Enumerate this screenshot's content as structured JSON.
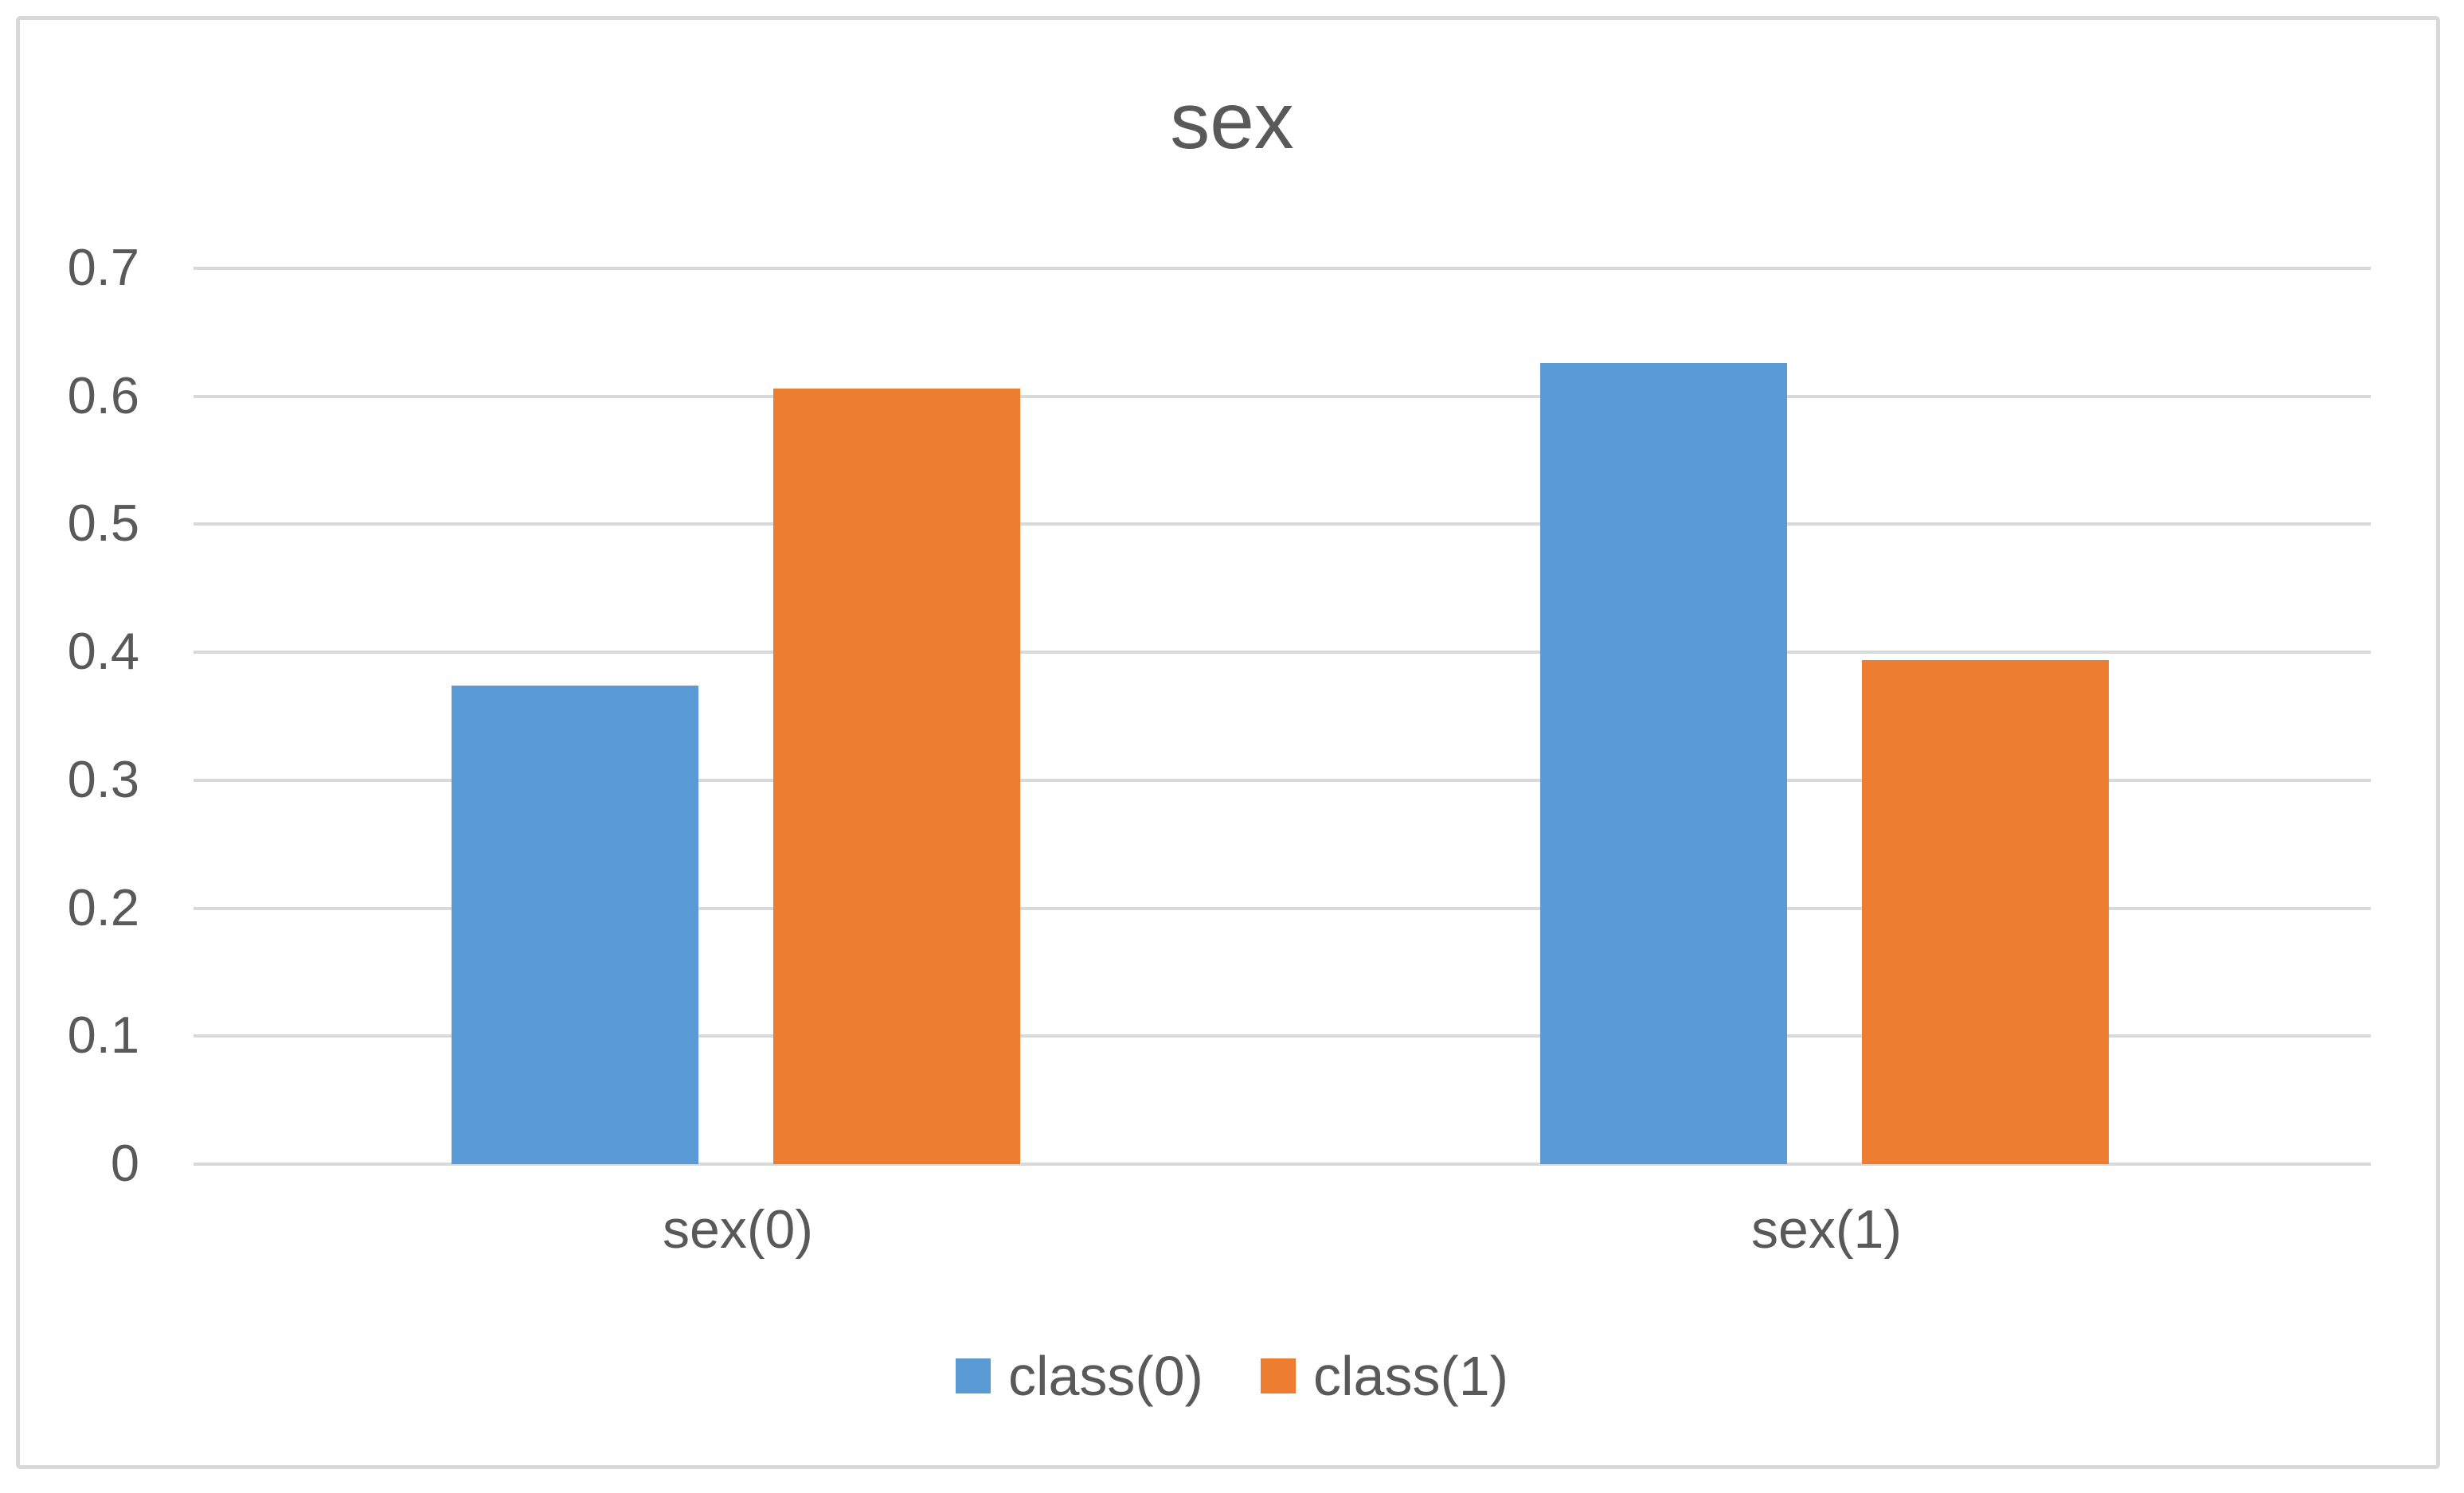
{
  "chart_data": {
    "type": "bar",
    "title": "sex",
    "categories": [
      "sex(0)",
      "sex(1)"
    ],
    "series": [
      {
        "name": "class(0)",
        "color": "#5B9BD5",
        "values": [
          0.374,
          0.626
        ]
      },
      {
        "name": "class(1)",
        "color": "#ED7D31",
        "values": [
          0.606,
          0.394
        ]
      }
    ],
    "xlabel": "",
    "ylabel": "",
    "ylim": [
      0,
      0.7
    ],
    "ytick_step": 0.1,
    "ytick_labels": [
      "0",
      "0.1",
      "0.2",
      "0.3",
      "0.4",
      "0.5",
      "0.6",
      "0.7"
    ],
    "grid": true,
    "legend_position": "bottom",
    "colors": {
      "text": "#595959",
      "gridline": "#D9D9D9",
      "frame_border": "#D8D8DB",
      "background": "#FFFFFF"
    }
  }
}
